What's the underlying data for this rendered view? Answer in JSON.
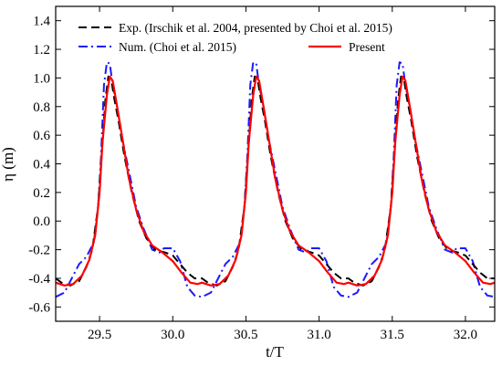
{
  "chart_data": {
    "type": "line",
    "xlabel": "t/T",
    "ylabel": "η (m)",
    "xlim": [
      29.2,
      32.2
    ],
    "ylim": [
      -0.7,
      1.5
    ],
    "xticks": [
      29.5,
      30.0,
      30.5,
      31.0,
      31.5,
      32.0
    ],
    "xtick_labels": [
      "29.5",
      "30.0",
      "30.5",
      "31.0",
      "31.5",
      "32.0"
    ],
    "yticks": [
      -0.6,
      -0.4,
      -0.2,
      0.0,
      0.2,
      0.4,
      0.6,
      0.8,
      1.0,
      1.2,
      1.4
    ],
    "ytick_labels": [
      "-0.6",
      "-0.4",
      "-0.2",
      "0.0",
      "0.2",
      "0.4",
      "0.6",
      "0.8",
      "1.0",
      "1.2",
      "1.4"
    ],
    "grid": false,
    "legend_position": "top",
    "period": 1.0,
    "cycle_start": 29.2,
    "cycles": 3,
    "series": [
      {
        "name": "Exp. (Irschik et al. 2004, presented by Choi et al. 2015)",
        "color": "#000000",
        "style": "dashed",
        "cycle": [
          [
            29.2,
            -0.4
          ],
          [
            29.24,
            -0.43
          ],
          [
            29.3,
            -0.45
          ],
          [
            29.36,
            -0.42
          ],
          [
            29.41,
            -0.32
          ],
          [
            29.45,
            -0.2
          ],
          [
            29.49,
            0.1
          ],
          [
            29.52,
            0.55
          ],
          [
            29.54,
            0.85
          ],
          [
            29.56,
            1.01
          ],
          [
            29.58,
            0.99
          ],
          [
            29.6,
            0.86
          ],
          [
            29.63,
            0.7
          ],
          [
            29.67,
            0.45
          ],
          [
            29.72,
            0.2
          ],
          [
            29.77,
            0.0
          ],
          [
            29.82,
            -0.12
          ],
          [
            29.88,
            -0.2
          ],
          [
            29.95,
            -0.22
          ],
          [
            30.0,
            -0.24
          ],
          [
            30.05,
            -0.3
          ],
          [
            30.1,
            -0.36
          ],
          [
            30.15,
            -0.4
          ],
          [
            30.2,
            -0.4
          ]
        ]
      },
      {
        "name": "Num. (Choi et al. 2015)",
        "color": "#1a1aff",
        "style": "dashdot",
        "cycle": [
          [
            29.2,
            -0.53
          ],
          [
            29.26,
            -0.5
          ],
          [
            29.31,
            -0.4
          ],
          [
            29.36,
            -0.3
          ],
          [
            29.41,
            -0.25
          ],
          [
            29.46,
            -0.15
          ],
          [
            29.49,
            0.1
          ],
          [
            29.51,
            0.45
          ],
          [
            29.53,
            0.95
          ],
          [
            29.55,
            1.11
          ],
          [
            29.57,
            1.1
          ],
          [
            29.59,
            0.95
          ],
          [
            29.62,
            0.8
          ],
          [
            29.66,
            0.55
          ],
          [
            29.7,
            0.35
          ],
          [
            29.75,
            0.1
          ],
          [
            29.8,
            -0.05
          ],
          [
            29.86,
            -0.2
          ],
          [
            29.91,
            -0.22
          ],
          [
            29.94,
            -0.19
          ],
          [
            30.0,
            -0.19
          ],
          [
            30.05,
            -0.28
          ],
          [
            30.1,
            -0.46
          ],
          [
            30.15,
            -0.52
          ],
          [
            30.2,
            -0.53
          ]
        ]
      },
      {
        "name": "Present",
        "color": "#ff0000",
        "style": "solid",
        "cycle": [
          [
            29.2,
            -0.43
          ],
          [
            29.26,
            -0.45
          ],
          [
            29.32,
            -0.44
          ],
          [
            29.38,
            -0.38
          ],
          [
            29.43,
            -0.27
          ],
          [
            29.47,
            -0.1
          ],
          [
            29.5,
            0.2
          ],
          [
            29.52,
            0.55
          ],
          [
            29.55,
            0.88
          ],
          [
            29.57,
            1.01
          ],
          [
            29.59,
            0.98
          ],
          [
            29.62,
            0.8
          ],
          [
            29.66,
            0.55
          ],
          [
            29.7,
            0.3
          ],
          [
            29.75,
            0.08
          ],
          [
            29.8,
            -0.07
          ],
          [
            29.86,
            -0.17
          ],
          [
            29.93,
            -0.22
          ],
          [
            30.0,
            -0.28
          ],
          [
            30.06,
            -0.36
          ],
          [
            30.12,
            -0.43
          ],
          [
            30.17,
            -0.44
          ],
          [
            30.2,
            -0.43
          ]
        ]
      }
    ]
  }
}
